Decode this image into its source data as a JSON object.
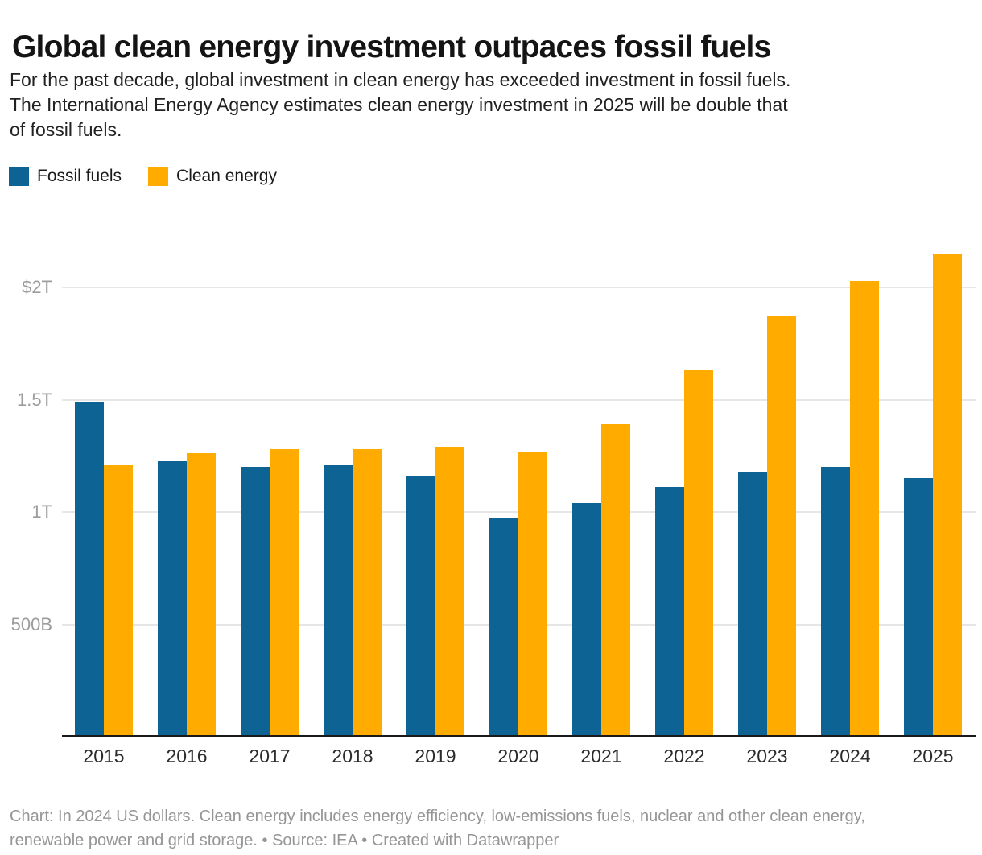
{
  "header": {
    "title": "Global clean energy investment outpaces fossil fuels",
    "subtitle": "For the past decade, global investment in clean energy has exceeded investment in fossil fuels. The International Energy Agency estimates clean energy investment in 2025 will be double that of fossil fuels.",
    "subtitle_lines": [
      "For the past decade, global investment in clean energy has exceeded investment in fossil fuels.",
      "The International Energy Agency estimates clean energy investment in 2025 will be double that",
      "of fossil fuels."
    ]
  },
  "legend": {
    "items": [
      {
        "label": "Fossil fuels",
        "color": "#0d6494"
      },
      {
        "label": "Clean energy",
        "color": "#ffab00"
      }
    ]
  },
  "chart_data": {
    "type": "bar",
    "title": "Global clean energy investment outpaces fossil fuels",
    "unit": "trillion US dollars",
    "categories": [
      "2015",
      "2016",
      "2017",
      "2018",
      "2019",
      "2020",
      "2021",
      "2022",
      "2023",
      "2024",
      "2025"
    ],
    "series": [
      {
        "name": "Fossil fuels",
        "color": "#0d6494",
        "values": [
          1.49,
          1.23,
          1.2,
          1.21,
          1.16,
          0.97,
          1.04,
          1.11,
          1.18,
          1.2,
          1.15
        ]
      },
      {
        "name": "Clean energy",
        "color": "#ffab00",
        "values": [
          1.21,
          1.26,
          1.28,
          1.28,
          1.29,
          1.27,
          1.39,
          1.63,
          1.87,
          2.03,
          2.15
        ]
      }
    ],
    "xlabel": "",
    "ylabel": "",
    "ylim": [
      0,
      2.3
    ],
    "yticks": [
      {
        "label": "$2T",
        "value": 2.0
      },
      {
        "label": "1.5T",
        "value": 1.5
      },
      {
        "label": "1T",
        "value": 1.0
      },
      {
        "label": "500B",
        "value": 0.5
      }
    ],
    "grid": true,
    "legend_position": "top-left"
  },
  "footer": {
    "note": "Chart: In 2024 US dollars. Clean energy includes energy efficiency, low-emissions fuels, nuclear and other clean energy, renewable power and grid storage.",
    "source": "Source: IEA",
    "credit": "Created with Datawrapper",
    "lines": [
      "Chart: In 2024 US dollars. Clean energy includes energy efficiency, low-emissions fuels, nuclear and other clean energy,",
      "renewable power and grid storage.  • Source: IEA • Created with Datawrapper"
    ]
  },
  "colors": {
    "background": "#ffffff",
    "fossil_fuels": "#0d6494",
    "clean_energy": "#ffab00",
    "gridline": "#e6e6e6",
    "axis_line": "#1a1a1a",
    "y_tick_text": "#9c9c9c",
    "x_tick_text": "#2b2b2b",
    "footer_text": "#959595"
  }
}
